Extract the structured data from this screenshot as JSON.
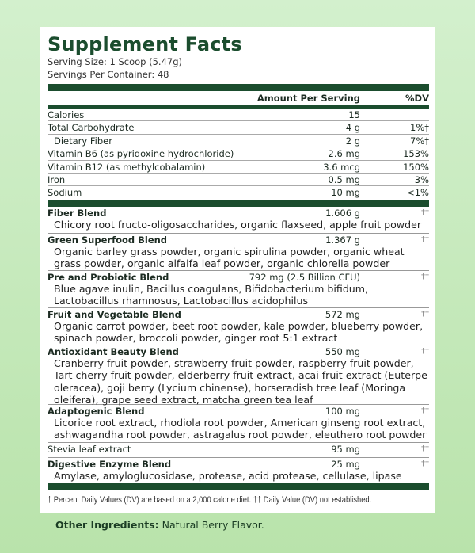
{
  "title": "Supplement Facts",
  "serving_size": "Serving Size: 1 Scoop (5.47g)",
  "servings_per_container": "Servings Per Container: 48",
  "header": {
    "amount": "Amount Per Serving",
    "dv": "%DV"
  },
  "nutrients": [
    {
      "name": "Calories",
      "amount": "15",
      "dv": ""
    },
    {
      "name": "Total Carbohydrate",
      "amount": "4 g",
      "dv": "1%†"
    },
    {
      "name": "Dietary Fiber",
      "amount": "2 g",
      "dv": "7%†"
    },
    {
      "name": "Vitamin B6 (as pyridoxine hydrochloride)",
      "amount": "2.6 mg",
      "dv": "153%"
    },
    {
      "name": "Vitamin B12 (as methylcobalamin)",
      "amount": "3.6 mcg",
      "dv": "150%"
    },
    {
      "name": "Iron",
      "amount": "0.5 mg",
      "dv": "3%"
    },
    {
      "name": "Sodium",
      "amount": "10 mg",
      "dv": "<1%"
    }
  ],
  "blends": [
    {
      "name": "Fiber Blend",
      "amount": "1.606 g",
      "dv": "††",
      "desc": "Chicory root fructo-oligosaccharides, organic flaxseed, apple fruit powder"
    },
    {
      "name": "Green Superfood Blend",
      "amount": "1.367 g",
      "dv": "††",
      "desc": "Organic barley grass powder, organic spirulina powder, organic wheat grass powder, organic alfalfa leaf powder, organic chlorella powder"
    },
    {
      "name": "Pre and Probiotic Blend",
      "amount": "792 mg (2.5 Billion CFU)",
      "dv": "††",
      "desc": "Blue agave inulin, Bacillus coagulans, Bifidobacterium bifidum, Lactobacillus rhamnosus, Lactobacillus acidophilus"
    },
    {
      "name": "Fruit and Vegetable Blend",
      "amount": "572 mg",
      "dv": "††",
      "desc": "Organic carrot powder, beet root powder, kale powder, blueberry powder, spinach powder, broccoli powder, ginger root 5:1 extract"
    },
    {
      "name": "Antioxidant Beauty Blend",
      "amount": "550 mg",
      "dv": "††",
      "desc": "Cranberry fruit powder, strawberry fruit powder, raspberry fruit powder, Tart cherry fruit powder, elderberry fruit extract, acai fruit extract (Euterpe oleracea), goji berry (Lycium chinense), horseradish tree leaf (Moringa oleifera), grape seed extract, matcha green tea leaf"
    },
    {
      "name": "Adaptogenic Blend",
      "amount": "100 mg",
      "dv": "††",
      "desc": "Licorice root extract, rhodiola root powder, American ginseng root extract, ashwagandha root powder, astragalus root powder, eleuthero root powder"
    },
    {
      "name": "Stevia leaf extract",
      "amount": "95 mg",
      "dv": "††",
      "desc": ""
    },
    {
      "name": "Digestive Enzyme Blend",
      "amount": "25 mg",
      "dv": "††",
      "desc": "Amylase, amyloglucosidase, protease, acid protease, cellulase, lipase"
    }
  ],
  "footnote": "† Percent Daily Values (DV) are based on a 2,000 calorie diet. †† Daily Value (DV) not established.",
  "other_ingredients": {
    "label": "Other Ingredients:",
    "value": "Natural Berry Flavor."
  },
  "colors": {
    "brand_green": "#1b4d2e",
    "background": "#c4e9b8"
  }
}
